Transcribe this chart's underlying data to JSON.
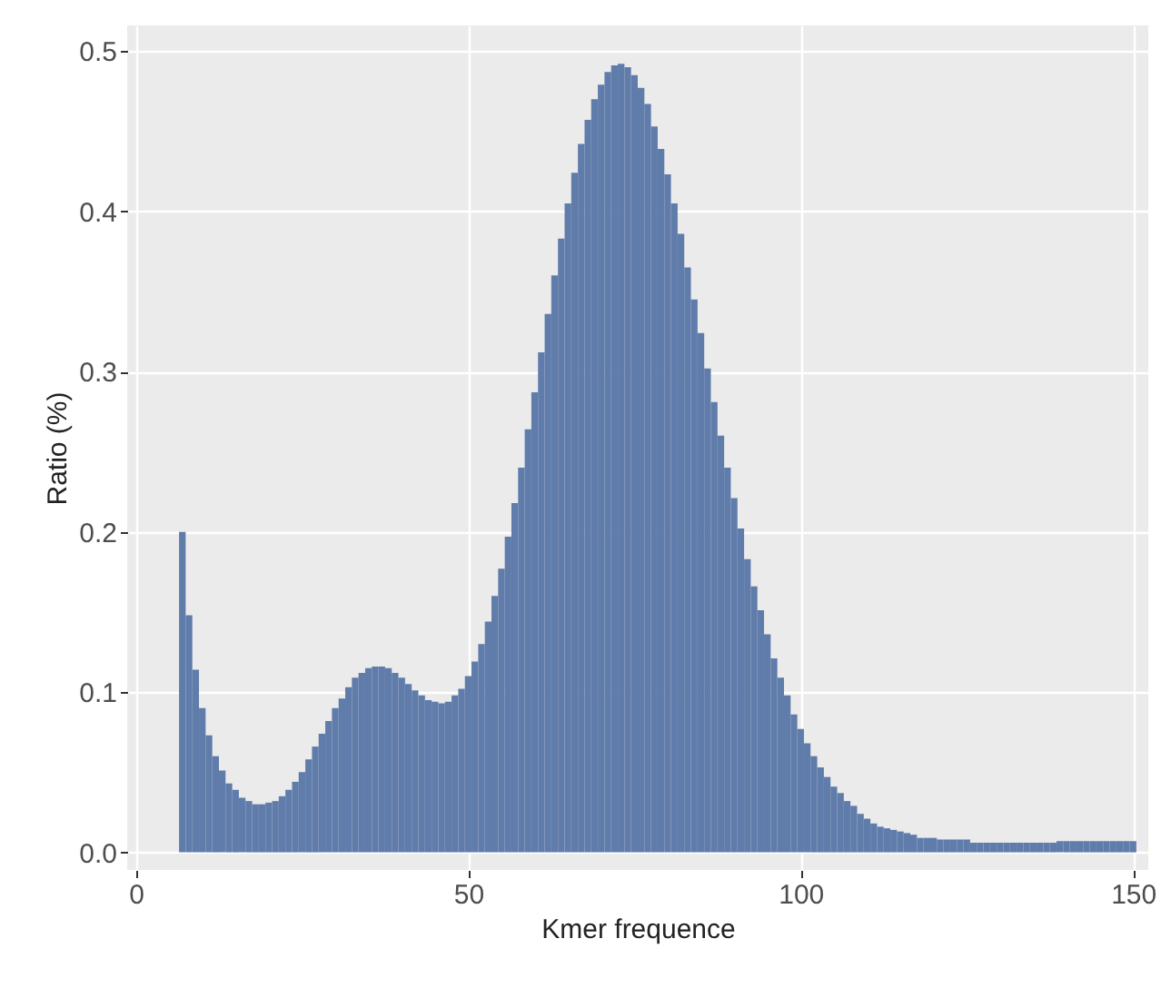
{
  "chart_data": {
    "type": "histogram",
    "xlabel": "Kmer frequence",
    "ylabel": "Ratio (%)",
    "color": "#607cab",
    "bins": [
      6.5,
      7.5,
      8.5,
      9.5,
      10.5,
      11.5,
      12.5,
      13.5,
      14.5,
      15.5,
      16.5,
      17.5,
      18.5,
      19.5,
      20.5,
      21.5,
      22.5,
      23.5,
      24.5,
      25.5,
      26.5,
      27.5,
      28.5,
      29.5,
      30.5,
      31.5,
      32.5,
      33.5,
      34.5,
      35.5,
      36.5,
      37.5,
      38.5,
      39.5,
      40.5,
      41.5,
      42.5,
      43.5,
      44.5,
      45.5,
      46.5,
      47.5,
      48.5,
      49.5,
      50.5,
      51.5,
      52.5,
      53.5,
      54.5,
      55.5,
      56.5,
      57.5,
      58.5,
      59.5,
      60.5,
      61.5,
      62.5,
      63.5,
      64.5,
      65.5,
      66.5,
      67.5,
      68.5,
      69.5,
      70.5,
      71.5,
      72.5,
      73.5,
      74.5,
      75.5,
      76.5,
      77.5,
      78.5,
      79.5,
      80.5,
      81.5,
      82.5,
      83.5,
      84.5,
      85.5,
      86.5,
      87.5,
      88.5,
      89.5,
      90.5,
      91.5,
      92.5,
      93.5,
      94.5,
      95.5,
      96.5,
      97.5,
      98.5,
      99.5,
      100.5,
      101.5,
      102.5,
      103.5,
      104.5,
      105.5,
      106.5,
      107.5,
      108.5,
      109.5,
      110.5,
      111.5,
      112.5,
      113.5,
      114.5,
      115.5,
      116.5,
      117.5,
      118.5,
      119.5,
      120.5,
      121.5,
      122.5,
      123.5,
      124.5,
      125.5,
      126.5,
      127.5,
      128.5,
      129.5,
      130.5,
      131.5,
      132.5,
      133.5,
      134.5,
      135.5,
      136.5,
      137.5,
      138.5,
      139.5,
      140.5,
      141.5,
      142.5,
      143.5,
      144.5,
      145.5,
      146.5,
      147.5,
      148.5,
      149.5,
      150.5
    ],
    "values": [
      0.2,
      0.148,
      0.114,
      0.09,
      0.073,
      0.06,
      0.051,
      0.043,
      0.039,
      0.034,
      0.032,
      0.03,
      0.03,
      0.031,
      0.032,
      0.035,
      0.039,
      0.044,
      0.05,
      0.058,
      0.066,
      0.074,
      0.082,
      0.09,
      0.096,
      0.103,
      0.109,
      0.112,
      0.115,
      0.116,
      0.116,
      0.115,
      0.112,
      0.109,
      0.105,
      0.101,
      0.098,
      0.095,
      0.094,
      0.093,
      0.094,
      0.098,
      0.102,
      0.11,
      0.119,
      0.13,
      0.144,
      0.16,
      0.177,
      0.197,
      0.218,
      0.24,
      0.264,
      0.287,
      0.312,
      0.336,
      0.36,
      0.383,
      0.405,
      0.424,
      0.442,
      0.457,
      0.47,
      0.479,
      0.487,
      0.491,
      0.492,
      0.49,
      0.485,
      0.477,
      0.467,
      0.453,
      0.439,
      0.423,
      0.405,
      0.386,
      0.365,
      0.345,
      0.324,
      0.302,
      0.281,
      0.26,
      0.24,
      0.221,
      0.202,
      0.183,
      0.166,
      0.151,
      0.136,
      0.121,
      0.109,
      0.098,
      0.086,
      0.077,
      0.068,
      0.06,
      0.053,
      0.047,
      0.041,
      0.037,
      0.032,
      0.029,
      0.024,
      0.021,
      0.018,
      0.016,
      0.015,
      0.014,
      0.013,
      0.012,
      0.011,
      0.009,
      0.009,
      0.009,
      0.008,
      0.008,
      0.008,
      0.008,
      0.008,
      0.006,
      0.006,
      0.006,
      0.006,
      0.006,
      0.006,
      0.006,
      0.006,
      0.006,
      0.006,
      0.006,
      0.006,
      0.006,
      0.007,
      0.007,
      0.007,
      0.007,
      0.007,
      0.007,
      0.007,
      0.007,
      0.007,
      0.007,
      0.007,
      0.007
    ],
    "xlim": [
      -1.3,
      152.3
    ],
    "xticks": [
      0,
      50,
      100,
      150
    ],
    "ylim": [
      -0.011,
      0.516
    ],
    "yticks": [
      {
        "value": 0,
        "label": "0.0"
      },
      0.1,
      0.2,
      0.3,
      0.4,
      0.5
    ],
    "grid": true
  }
}
